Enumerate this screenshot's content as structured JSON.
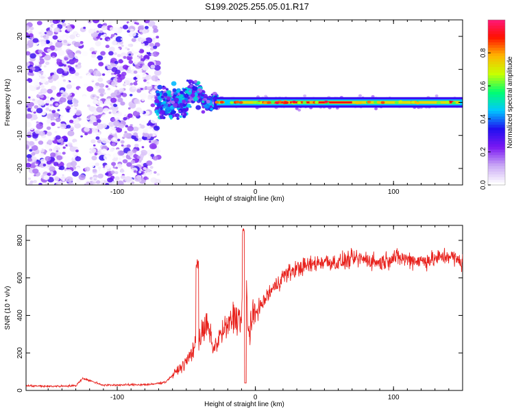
{
  "title": "S199.2025.255.05.01.R17",
  "chart_data": [
    {
      "type": "heatmap",
      "name": "spectrogram",
      "xlabel": "Height of straight line (km)",
      "ylabel": "Frequency (Hz)",
      "xlim": [
        -166,
        150
      ],
      "ylim": [
        -25,
        25
      ],
      "xticks": [
        -100,
        0,
        100
      ],
      "xticklabels": [
        "-100",
        "0",
        "100"
      ],
      "yticks": [
        -20,
        -10,
        0,
        10,
        20
      ],
      "yticklabels": [
        "-20",
        "-10",
        "0",
        "10",
        "20"
      ],
      "colorbar": {
        "label": "Normalized spectral amplitude",
        "range": [
          0,
          1
        ],
        "ticks": [
          0.0,
          0.2,
          0.4,
          0.6,
          0.8
        ],
        "ticklabels": [
          "0.0",
          "0.2",
          "0.4",
          "0.6",
          "0.8"
        ],
        "colors": [
          "#ffffff",
          "#c9a8f5",
          "#7a18f2",
          "#2010f0",
          "#00c8ff",
          "#00ff70",
          "#c8ff00",
          "#ffb400",
          "#ff1000",
          "#ff1880"
        ]
      },
      "regions": [
        {
          "x_range": [
            -166,
            -70
          ],
          "freq_spread": 25,
          "amplitude": 0.15,
          "description": "noise"
        },
        {
          "x_range": [
            -70,
            -30
          ],
          "freq_center": 0,
          "freq_spread": 6,
          "amplitude": 0.35
        },
        {
          "x_range": [
            -30,
            150
          ],
          "freq_center": 0,
          "freq_spread": 1.5,
          "amplitude": 0.85
        }
      ]
    },
    {
      "type": "line",
      "name": "snr",
      "xlabel": "Height of straight line (km)",
      "ylabel": "SNR (10 * v/v)",
      "xlim": [
        -166,
        150
      ],
      "ylim": [
        0,
        880
      ],
      "xticks": [
        -100,
        0,
        100
      ],
      "xticklabels": [
        "-100",
        "0",
        "100"
      ],
      "yticks": [
        0,
        200,
        400,
        600,
        800
      ],
      "yticklabels": [
        "0",
        "200",
        "400",
        "600",
        "800"
      ],
      "line_color": "#e8211c",
      "series": [
        {
          "name": "SNR",
          "x": [
            -166,
            -150,
            -130,
            -125,
            -110,
            -90,
            -75,
            -65,
            -58,
            -50,
            -45,
            -40,
            -35,
            -30,
            -25,
            -20,
            -15,
            -10,
            -8,
            -5,
            0,
            5,
            10,
            15,
            20,
            25,
            30,
            40,
            50,
            60,
            70,
            80,
            90,
            100,
            110,
            120,
            130,
            140,
            150
          ],
          "values": [
            25,
            22,
            25,
            65,
            28,
            30,
            32,
            45,
            95,
            150,
            220,
            280,
            350,
            220,
            300,
            340,
            400,
            380,
            860,
            300,
            420,
            460,
            520,
            560,
            610,
            630,
            650,
            670,
            690,
            680,
            700,
            700,
            680,
            710,
            700,
            690,
            700,
            720,
            680
          ]
        }
      ],
      "annotations": [
        {
          "x": -42,
          "y": 700,
          "description": "spike"
        },
        {
          "x": -8,
          "y": 880,
          "description": "peak spike"
        }
      ]
    }
  ]
}
